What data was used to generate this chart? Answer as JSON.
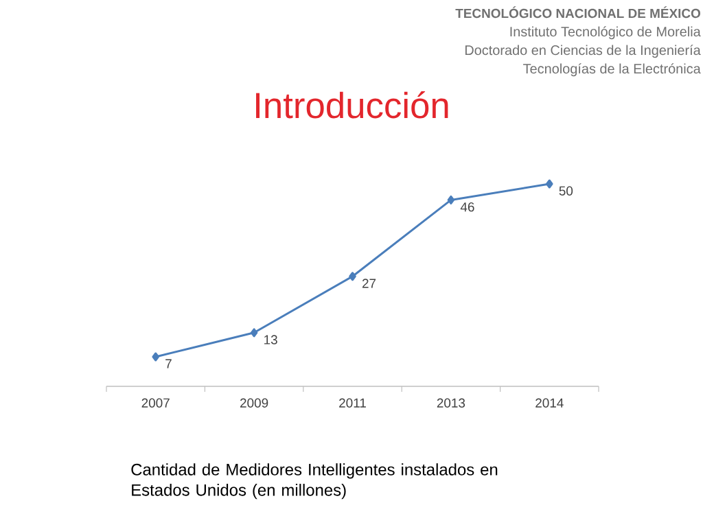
{
  "chart_data": {
    "type": "line",
    "title": "Introducción",
    "annotations": [
      "TECNOLÓGICO NACIONAL DE MÉXICO",
      "Instituto Tecnológico de Morelia",
      "Doctorado en Ciencias de la Ingeniería",
      "Tecnologías de la Electrónica",
      "Cantidad de Medidores Intelligentes instalados en Estados Unidos (en millones)"
    ],
    "categories": [
      "2007",
      "2009",
      "2011",
      "2013",
      "2014"
    ],
    "values": [
      7,
      13,
      27,
      46,
      50
    ],
    "color": "#4a7ebb",
    "marker": "diamond",
    "line_style": "solid",
    "data_labels": true,
    "tick_labels": "x"
  }
}
